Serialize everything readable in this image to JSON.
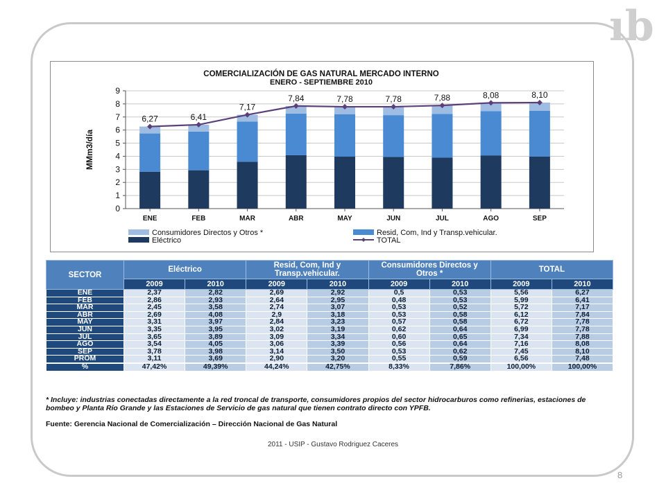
{
  "chart_data": {
    "type": "bar",
    "title": "COMERCIALIZACIÓN DE GAS NATURAL MERCADO INTERNO",
    "subtitle": "ENERO - SEPTIEMBRE 2010",
    "ylabel": "MMm3/día",
    "ylim": [
      0,
      9
    ],
    "yticks": [
      "0",
      "1",
      "2",
      "3",
      "4",
      "5",
      "6",
      "7",
      "8",
      "9"
    ],
    "categories": [
      "ENE",
      "FEB",
      "MAR",
      "ABR",
      "MAY",
      "JUN",
      "JUL",
      "AGO",
      "SEP"
    ],
    "series": [
      {
        "name": "Eléctrico",
        "kind": "stacked-bar",
        "color": "#1f3a5f",
        "values": [
          2.82,
          2.93,
          3.58,
          4.08,
          3.97,
          3.95,
          3.89,
          4.05,
          3.98
        ]
      },
      {
        "name": "Resid, Com, Ind y Transp.vehicular.",
        "kind": "stacked-bar",
        "color": "#4a8ad2",
        "values": [
          2.92,
          2.95,
          3.07,
          3.18,
          3.23,
          3.19,
          3.34,
          3.39,
          3.5
        ]
      },
      {
        "name": "Consumidores Directos y Otros *",
        "kind": "stacked-bar",
        "color": "#9fbde2",
        "values": [
          0.53,
          0.53,
          0.52,
          0.58,
          0.58,
          0.64,
          0.65,
          0.64,
          0.62
        ]
      },
      {
        "name": "TOTAL",
        "kind": "line",
        "color": "#5b3f79",
        "values": [
          6.27,
          6.41,
          7.17,
          7.84,
          7.78,
          7.78,
          7.88,
          8.08,
          8.1
        ]
      }
    ],
    "data_labels": [
      "6,27",
      "6,41",
      "7,17",
      "7,84",
      "7,78",
      "7,78",
      "7,88",
      "8,08",
      "8,10"
    ],
    "legend": {
      "placement": "bottom",
      "items": [
        {
          "label": "Consumidores Directos y Otros *",
          "color": "#9fbde2",
          "marker": "box"
        },
        {
          "label": "Resid, Com, Ind y Transp.vehicular.",
          "color": "#4a8ad2",
          "marker": "box"
        },
        {
          "label": "Eléctrico",
          "color": "#1f3a5f",
          "marker": "box"
        },
        {
          "label": "TOTAL",
          "color": "#5b3f79",
          "marker": "line"
        }
      ]
    },
    "grid": true
  },
  "table": {
    "sector_header": "SECTOR",
    "groups": [
      "Eléctrico",
      "Resid, Com, Ind y Transp.vehicular.",
      "Consumidores Directos y Otros *",
      "TOTAL"
    ],
    "years": [
      "2009",
      "2010",
      "2009",
      "2010",
      "2009",
      "2010",
      "2009",
      "2010"
    ],
    "rows": [
      {
        "label": "ENE",
        "values": [
          "2,37",
          "2,82",
          "2,69",
          "2,92",
          "0,5",
          "0,53",
          "5,56",
          "6,27"
        ]
      },
      {
        "label": "FEB",
        "values": [
          "2,86",
          "2,93",
          "2,64",
          "2,95",
          "0,48",
          "0,53",
          "5,99",
          "6,41"
        ]
      },
      {
        "label": "MAR",
        "values": [
          "2,45",
          "3,58",
          "2,74",
          "3,07",
          "0,53",
          "0,52",
          "5,72",
          "7,17"
        ]
      },
      {
        "label": "ABR",
        "values": [
          "2,69",
          "4,08",
          "2,9",
          "3,18",
          "0,53",
          "0,58",
          "6,12",
          "7,84"
        ]
      },
      {
        "label": "MAY",
        "values": [
          "3,31",
          "3,97",
          "2,84",
          "3,23",
          "0,57",
          "0,58",
          "6,72",
          "7,78"
        ]
      },
      {
        "label": "JUN",
        "values": [
          "3,35",
          "3,95",
          "3,02",
          "3,19",
          "0,62",
          "0,64",
          "6,99",
          "7,78"
        ]
      },
      {
        "label": "JUL",
        "values": [
          "3,65",
          "3,89",
          "3,09",
          "3,34",
          "0,60",
          "0,65",
          "7,34",
          "7,88"
        ]
      },
      {
        "label": "AGO",
        "values": [
          "3,54",
          "4,05",
          "3,06",
          "3,39",
          "0,56",
          "0,64",
          "7,16",
          "8,08"
        ]
      },
      {
        "label": "SEP",
        "values": [
          "3,78",
          "3,98",
          "3,14",
          "3,50",
          "0,53",
          "0,62",
          "7,45",
          "8,10"
        ]
      },
      {
        "label": "PROM",
        "values": [
          "3,11",
          "3,69",
          "2,90",
          "3,20",
          "0,55",
          "0,59",
          "6,56",
          "7,48"
        ]
      },
      {
        "label": "%",
        "values": [
          "47,42%",
          "49,39%",
          "44,24%",
          "42,75%",
          "8,33%",
          "7,86%",
          "100,00%",
          "100,00%"
        ]
      }
    ]
  },
  "note": "* Incluye: industrias conectadas directamente a la red troncal de transporte, consumidores propios del sector  hidrocarburos como refinerias, estaciones de bombeo y  Planta Río Grande y las Estaciones de Servicio de gas natural que tienen contrato directo con YPFB.",
  "source": "Fuente: Gerencia Nacional de Comercialización – Dirección Nacional de Gas Natural",
  "footer": "2011 - USIP - Gustavo Rodriguez Caceres",
  "page_number": "8",
  "logo_text": "ıb"
}
